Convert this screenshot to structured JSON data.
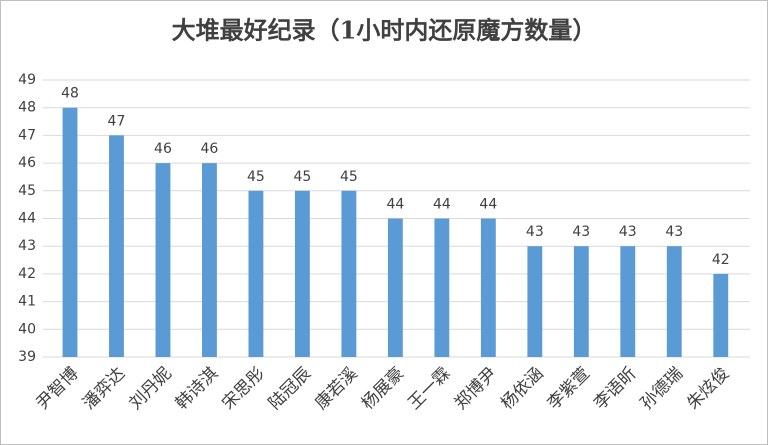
{
  "chart_data": {
    "type": "bar",
    "title": "大堆最好纪录（1小时内还原魔方数量）",
    "categories": [
      "尹智博",
      "潘弈达",
      "刘丹妮",
      "韩诗淇",
      "宋思彤",
      "陆冠辰",
      "康若溪",
      "杨展豪",
      "王一霖",
      "郑博尹",
      "杨依涵",
      "李紫萱",
      "李语昕",
      "孙德瑞",
      "朱炫俊"
    ],
    "values": [
      48,
      47,
      46,
      46,
      45,
      45,
      45,
      44,
      44,
      44,
      43,
      43,
      43,
      43,
      42
    ],
    "color": "#5b9bd5",
    "ylim": [
      39,
      49
    ],
    "yticks": [
      39,
      40,
      41,
      42,
      43,
      44,
      45,
      46,
      47,
      48,
      49
    ],
    "grid": true
  }
}
